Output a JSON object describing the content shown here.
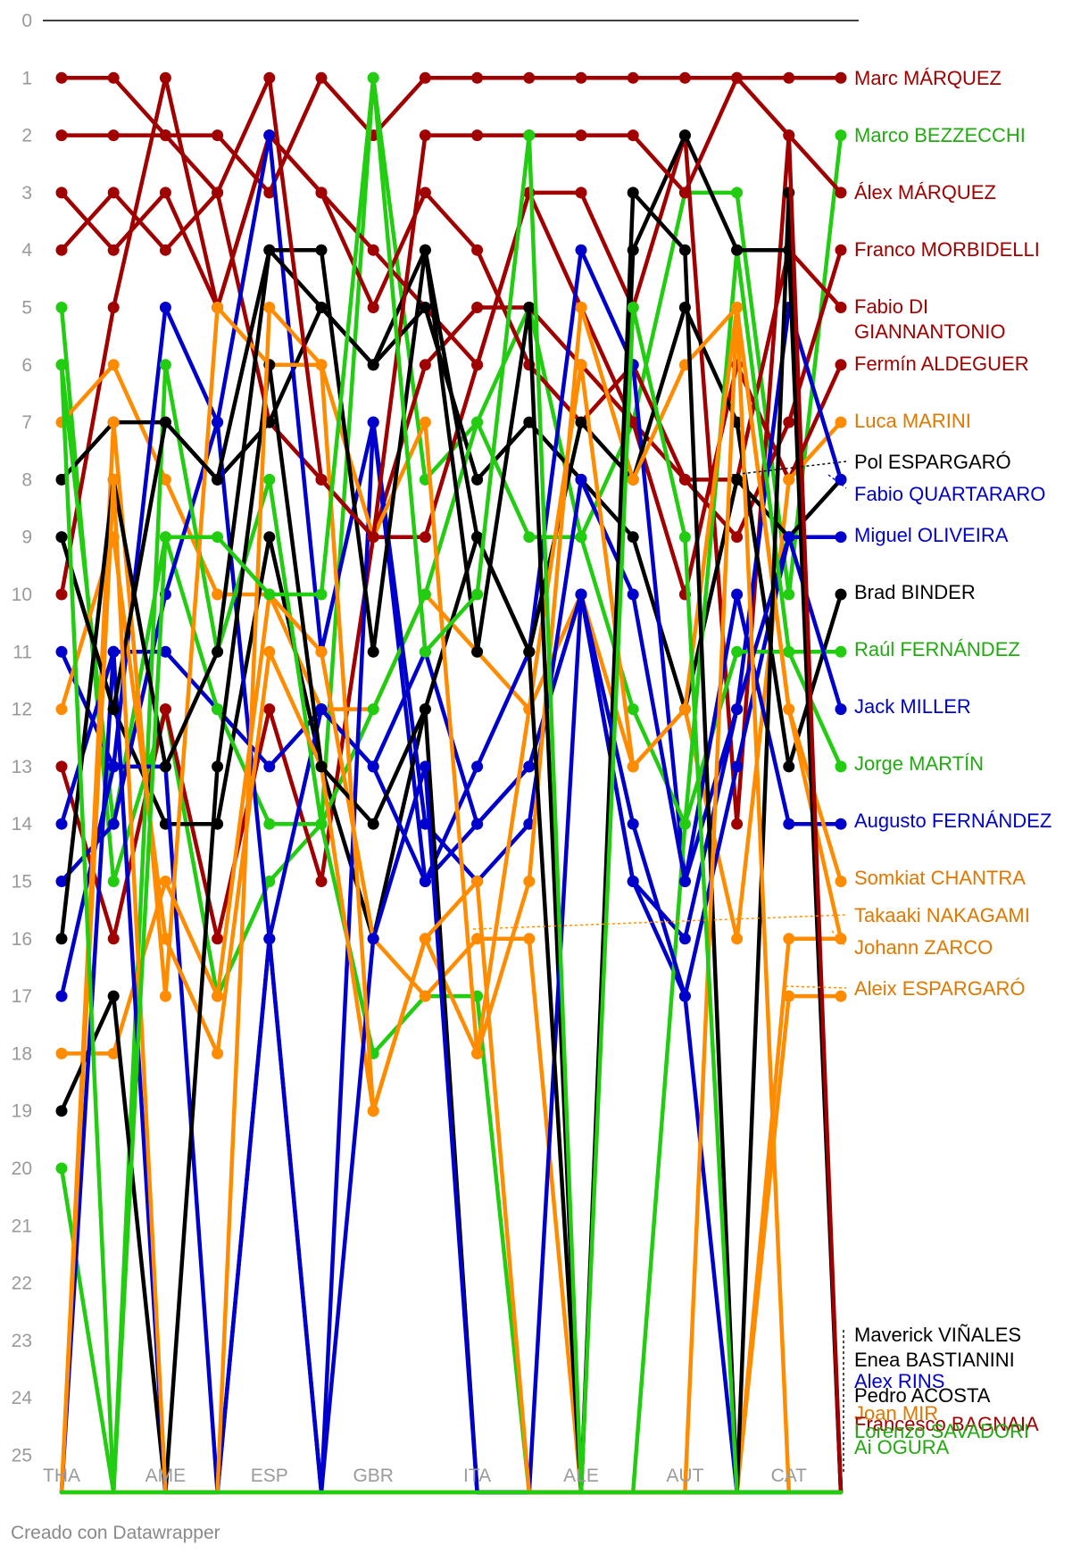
{
  "footer": "Creado con Datawrapper",
  "chart_data": {
    "type": "line",
    "title": "",
    "xlabel": "",
    "ylabel": "",
    "ylim": [
      0,
      25
    ],
    "y_reversed": true,
    "grid": false,
    "x_ticks": [
      "THA",
      "AME",
      "ESP",
      "GBR",
      "ITA",
      "ALE",
      "AUT",
      "CAT"
    ],
    "x": [
      "r1",
      "r2",
      "r3",
      "r4",
      "r5",
      "r6",
      "r7",
      "r8",
      "r9",
      "r10",
      "r11",
      "r12",
      "r13",
      "r14",
      "r15",
      "r16"
    ],
    "colors": {
      "red": "#a00000",
      "green": "#22cc11",
      "orange": "#ff8c00",
      "blue": "#0000cc",
      "black": "#000000"
    },
    "series": [
      {
        "name": "Marc MÁRQUEZ",
        "color": "#a00000",
        "values": [
          1,
          1,
          2,
          2,
          3,
          1,
          2,
          1,
          1,
          1,
          1,
          1,
          1,
          1,
          1,
          1
        ]
      },
      {
        "name": "Marco BEZZECCHI",
        "color": "#22cc11",
        "values": [
          5,
          15,
          12,
          17,
          15,
          14,
          1,
          8,
          7,
          5,
          9,
          7,
          3,
          3,
          10,
          2
        ]
      },
      {
        "name": "Álex MÁRQUEZ",
        "color": "#a00000",
        "values": [
          3,
          4,
          3,
          5,
          2,
          3,
          4,
          5,
          6,
          3,
          3,
          5,
          2,
          14,
          2,
          3
        ]
      },
      {
        "name": "Franco MORBIDELLI",
        "color": "#a00000",
        "values": [
          4,
          3,
          4,
          3,
          7,
          8,
          9,
          9,
          6,
          3,
          5,
          7,
          8,
          9,
          7,
          4
        ]
      },
      {
        "name": "Fabio DI GIANNANTONIO",
        "color": "#a00000",
        "values": [
          10,
          5,
          1,
          5,
          2,
          3,
          5,
          3,
          4,
          6,
          7,
          6,
          8,
          8,
          4,
          5
        ]
      },
      {
        "name": "Fermín ALDEGUER",
        "color": "#a00000",
        "values": [
          13,
          16,
          12,
          16,
          12,
          15,
          9,
          6,
          5,
          5,
          6,
          7,
          10,
          6,
          8,
          6
        ]
      },
      {
        "name": "Luca MARINI",
        "color": "#ff8c00",
        "values": [
          7,
          6,
          8,
          10,
          10,
          12,
          12,
          10,
          11,
          12,
          10,
          13,
          12,
          16,
          8,
          7
        ]
      },
      {
        "name": "Pol ESPARGARÓ",
        "color": "#000000",
        "values": [
          8,
          7,
          7,
          8,
          7,
          5,
          6,
          5,
          8,
          7,
          8,
          9,
          12,
          8,
          9,
          8
        ]
      },
      {
        "name": "Fabio QUARTARARO",
        "color": "#0000cc",
        "values": [
          11,
          13,
          5,
          7,
          2,
          11,
          7,
          15,
          13,
          11,
          4,
          6,
          15,
          12,
          5,
          8
        ]
      },
      {
        "name": "Miguel OLIVEIRA",
        "color": "#0000cc",
        "values": [
          14,
          11,
          11,
          12,
          13,
          12,
          13,
          11,
          14,
          13,
          10,
          15,
          17,
          13,
          9,
          9
        ]
      },
      {
        "name": "Brad BINDER",
        "color": "#000000",
        "values": [
          9,
          12,
          14,
          14,
          9,
          13,
          16,
          12,
          9,
          11,
          7,
          8,
          5,
          7,
          13,
          10
        ]
      },
      {
        "name": "Raúl FERNÁNDEZ",
        "color": "#22cc11",
        "values": [
          6,
          14,
          9,
          12,
          14,
          14,
          12,
          10,
          7,
          9,
          9,
          12,
          14,
          11,
          11,
          11
        ]
      },
      {
        "name": "Jack MILLER",
        "color": "#0000cc",
        "values": [
          15,
          14,
          10,
          7,
          16,
          12,
          13,
          15,
          14,
          13,
          10,
          15,
          16,
          12,
          9,
          12
        ]
      },
      {
        "name": "Jorge MARTÍN",
        "color": "#22cc11",
        "values": [
          20,
          25,
          6,
          11,
          8,
          14,
          18,
          17,
          17,
          25,
          25,
          25,
          14,
          4,
          11,
          13
        ]
      },
      {
        "name": "Augusto FERNÁNDEZ",
        "color": "#0000cc",
        "values": [
          17,
          13,
          13,
          25,
          16,
          25,
          7,
          14,
          15,
          14,
          8,
          10,
          15,
          10,
          14,
          14
        ]
      },
      {
        "name": "Somkiat CHANTRA",
        "color": "#ff8c00",
        "values": [
          12,
          9,
          16,
          18,
          11,
          13,
          19,
          16,
          18,
          12,
          6,
          13,
          12,
          5,
          12,
          15
        ]
      },
      {
        "name": "Takaaki NAKAGAMI",
        "color": "#ff8c00",
        "values": [
          18,
          18,
          15,
          17,
          10,
          11,
          16,
          17,
          16,
          16,
          25,
          25,
          25,
          25,
          16,
          16
        ]
      },
      {
        "name": "Johann ZARCO",
        "color": "#ff8c00",
        "values": [
          25,
          7,
          17,
          5,
          6,
          6,
          9,
          7,
          18,
          15,
          5,
          8,
          6,
          5,
          12,
          16
        ]
      },
      {
        "name": "Aleix ESPARGARÓ",
        "color": "#ff8c00",
        "values": [
          25,
          25,
          25,
          25,
          25,
          25,
          25,
          25,
          25,
          25,
          25,
          25,
          25,
          25,
          17,
          17
        ]
      },
      {
        "name": "Maverick VIÑALES",
        "color": "#000000",
        "values": [
          16,
          8,
          13,
          11,
          4,
          4,
          11,
          4,
          11,
          5,
          25,
          4,
          2,
          4,
          4,
          25
        ]
      },
      {
        "name": "Enea BASTIANINI",
        "color": "#000000",
        "values": [
          19,
          17,
          25,
          13,
          6,
          13,
          14,
          12,
          25,
          25,
          25,
          3,
          4,
          25,
          3,
          25
        ]
      },
      {
        "name": "Alex RINS",
        "color": "#0000cc",
        "values": [
          25,
          11,
          25,
          25,
          16,
          25,
          16,
          13,
          25,
          25,
          10,
          14,
          17,
          25,
          25,
          25
        ]
      },
      {
        "name": "Pedro ACOSTA",
        "color": "#000000",
        "values": [
          9,
          12,
          7,
          8,
          4,
          5,
          6,
          4,
          9,
          11,
          25,
          25,
          25,
          25,
          25,
          25
        ]
      },
      {
        "name": "Joan MIR",
        "color": "#ff8c00",
        "values": [
          25,
          8,
          25,
          25,
          5,
          6,
          19,
          16,
          15,
          25,
          25,
          25,
          25,
          5,
          25,
          25
        ]
      },
      {
        "name": "Francesco BAGNAIA",
        "color": "#a00000",
        "values": [
          2,
          2,
          2,
          3,
          1,
          8,
          9,
          2,
          2,
          2,
          2,
          2,
          3,
          1,
          2,
          25
        ]
      },
      {
        "name": "Lorenzo SAVADORI",
        "color": "#22cc11",
        "values": [
          25,
          25,
          25,
          25,
          25,
          25,
          25,
          25,
          25,
          25,
          25,
          25,
          25,
          25,
          25,
          25
        ]
      },
      {
        "name": "Ai OGURA",
        "color": "#22cc11",
        "values": [
          6,
          25,
          9,
          9,
          10,
          10,
          1,
          11,
          10,
          2,
          25,
          5,
          9,
          25,
          25,
          25
        ]
      }
    ],
    "labels": [
      {
        "text": "Marc MÁRQUEZ",
        "color": "#a00000"
      },
      {
        "text": "Marco BEZZECCHI",
        "color": "#22aa11"
      },
      {
        "text": "Álex MÁRQUEZ",
        "color": "#a00000"
      },
      {
        "text": "Franco MORBIDELLI",
        "color": "#a00000"
      },
      {
        "text": "Fabio DI",
        "color": "#a00000"
      },
      {
        "text": "GIANNANTONIO",
        "color": "#a00000"
      },
      {
        "text": "Fermín ALDEGUER",
        "color": "#a00000"
      },
      {
        "text": "Luca MARINI",
        "color": "#e07800"
      },
      {
        "text": "Pol ESPARGARÓ",
        "color": "#000000"
      },
      {
        "text": "Fabio QUARTARARO",
        "color": "#0000cc"
      },
      {
        "text": "Miguel OLIVEIRA",
        "color": "#0000cc"
      },
      {
        "text": "Brad BINDER",
        "color": "#000000"
      },
      {
        "text": "Raúl FERNÁNDEZ",
        "color": "#22aa11"
      },
      {
        "text": "Jack MILLER",
        "color": "#0000cc"
      },
      {
        "text": "Jorge MARTÍN",
        "color": "#22aa11"
      },
      {
        "text": "Augusto FERNÁNDEZ",
        "color": "#0000cc"
      },
      {
        "text": "Somkiat CHANTRA",
        "color": "#e07800"
      },
      {
        "text": "Takaaki NAKAGAMI",
        "color": "#e07800"
      },
      {
        "text": "Johann ZARCO",
        "color": "#e07800"
      },
      {
        "text": "Aleix ESPARGARÓ",
        "color": "#e07800"
      },
      {
        "text": "Maverick VIÑALES",
        "color": "#000000"
      },
      {
        "text": "Enea BASTIANINI",
        "color": "#000000"
      },
      {
        "text": "Alex RINS",
        "color": "#0000cc"
      },
      {
        "text": "Pedro ACOSTA",
        "color": "#000000"
      },
      {
        "text": "Joan MIR",
        "color": "#e07800"
      },
      {
        "text": "Francesco BAGNAIA",
        "color": "#a00000"
      },
      {
        "text": "Lorenzo SAVADORI",
        "color": "#22aa11"
      },
      {
        "text": "Ai OGURA",
        "color": "#22aa11"
      }
    ]
  }
}
